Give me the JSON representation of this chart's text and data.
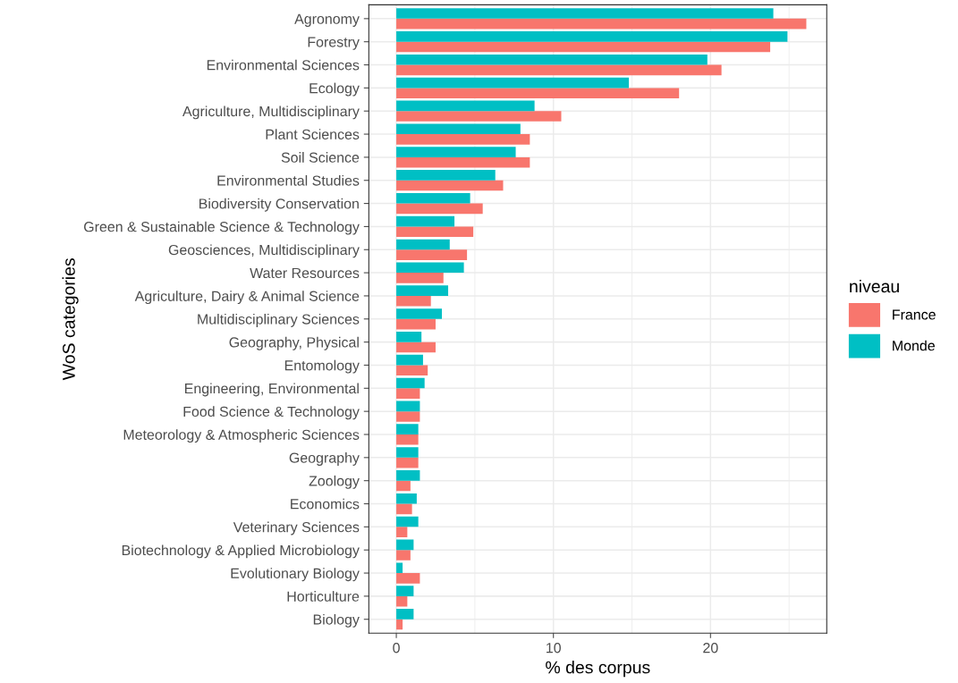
{
  "chart_data": {
    "type": "bar",
    "orientation": "horizontal",
    "xlabel": "% des corpus",
    "ylabel": "WoS categories",
    "legend_title": "niveau",
    "legend": "right",
    "grid": true,
    "categories": [
      "Agronomy",
      "Forestry",
      "Environmental Sciences",
      "Ecology",
      "Agriculture, Multidisciplinary",
      "Plant Sciences",
      "Soil Science",
      "Environmental Studies",
      "Biodiversity Conservation",
      "Green & Sustainable Science & Technology",
      "Geosciences, Multidisciplinary",
      "Water Resources",
      "Agriculture, Dairy & Animal Science",
      "Multidisciplinary Sciences",
      "Geography, Physical",
      "Entomology",
      "Engineering, Environmental",
      "Food Science & Technology",
      "Meteorology & Atmospheric Sciences",
      "Geography",
      "Zoology",
      "Economics",
      "Veterinary Sciences",
      "Biotechnology & Applied Microbiology",
      "Evolutionary Biology",
      "Horticulture",
      "Biology"
    ],
    "series": [
      {
        "name": "France",
        "color": "#f8766d",
        "values": [
          26.1,
          23.8,
          20.7,
          18.0,
          10.5,
          8.5,
          8.5,
          6.8,
          5.5,
          4.9,
          4.5,
          3.0,
          2.2,
          2.5,
          2.5,
          2.0,
          1.5,
          1.5,
          1.4,
          1.4,
          0.9,
          1.0,
          0.7,
          0.9,
          1.5,
          0.7,
          0.4
        ]
      },
      {
        "name": "Monde",
        "color": "#00bfc4",
        "values": [
          24.0,
          24.9,
          19.8,
          14.8,
          8.8,
          7.9,
          7.6,
          6.3,
          4.7,
          3.7,
          3.4,
          4.3,
          3.3,
          2.9,
          1.6,
          1.7,
          1.8,
          1.5,
          1.4,
          1.4,
          1.5,
          1.3,
          1.4,
          1.1,
          0.4,
          1.1,
          1.1
        ]
      }
    ],
    "xlim": [
      -1.75,
      27.4
    ],
    "xticks": [
      0,
      {
        "value": 5,
        "label": null
      },
      10,
      {
        "value": 15,
        "label": null
      },
      20,
      {
        "value": 25,
        "label": null
      }
    ]
  }
}
